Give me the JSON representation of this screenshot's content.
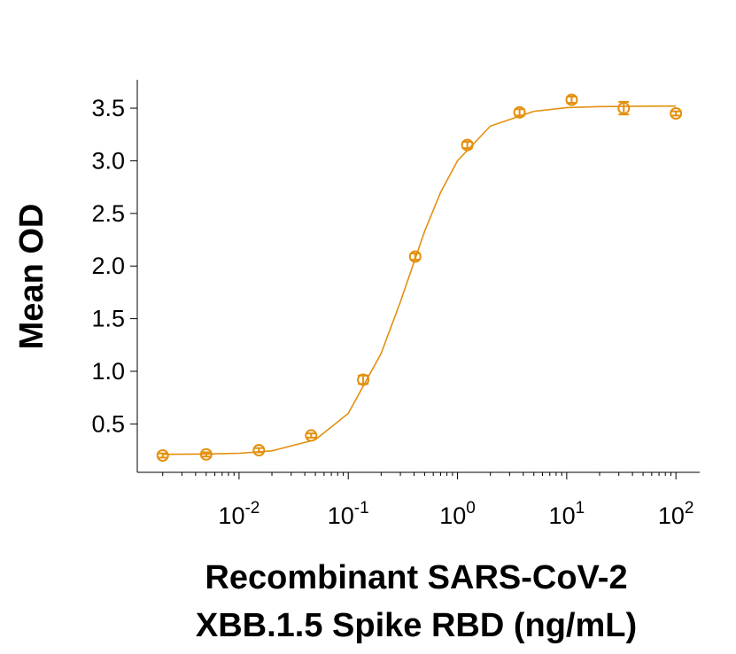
{
  "chart_data": {
    "type": "scatter",
    "xlabel": [
      "Recombinant SARS-CoV-2",
      "XBB.1.5 Spike RBD (ng/mL)"
    ],
    "ylabel": "Mean OD",
    "xscale": "log",
    "xlim": [
      0.00117,
      165
    ],
    "ylim": [
      0.04,
      3.77
    ],
    "xticks": [
      {
        "value": 0.01,
        "label": "10",
        "exponent": "-2"
      },
      {
        "value": 0.1,
        "label": "10",
        "exponent": "-1"
      },
      {
        "value": 1,
        "label": "10",
        "exponent": "0"
      },
      {
        "value": 10,
        "label": "10",
        "exponent": "1"
      },
      {
        "value": 100,
        "label": "10",
        "exponent": "2"
      }
    ],
    "yticks": [
      0.5,
      {
        "value": 1,
        "label": "1.0"
      },
      1.5,
      {
        "value": 2,
        "label": "2.0"
      },
      2.5,
      {
        "value": 3,
        "label": "3.0"
      },
      3.5
    ],
    "series": [
      {
        "color": "#e3900f",
        "x": [
          0.002,
          0.005,
          0.0152,
          0.0457,
          0.137,
          0.41,
          1.23,
          3.7,
          11.1,
          33.3,
          100
        ],
        "values": [
          0.2,
          0.21,
          0.25,
          0.39,
          0.92,
          2.09,
          3.15,
          3.46,
          3.58,
          3.5,
          3.45
        ],
        "errors": [
          0.02,
          0.02,
          0.02,
          0.02,
          0.04,
          0.03,
          0.03,
          0.03,
          0.03,
          0.06,
          0.02
        ]
      }
    ],
    "fit": {
      "color": "#e3900f",
      "x": [
        0.002,
        0.005,
        0.01,
        0.02,
        0.05,
        0.1,
        0.2,
        0.3,
        0.5,
        0.7,
        1,
        2,
        5,
        10,
        20,
        50,
        100
      ],
      "values": [
        0.211,
        0.214,
        0.221,
        0.244,
        0.35,
        0.6,
        1.17,
        1.66,
        2.33,
        2.7,
        3.0,
        3.33,
        3.47,
        3.505,
        3.515,
        3.519,
        3.52
      ]
    }
  }
}
